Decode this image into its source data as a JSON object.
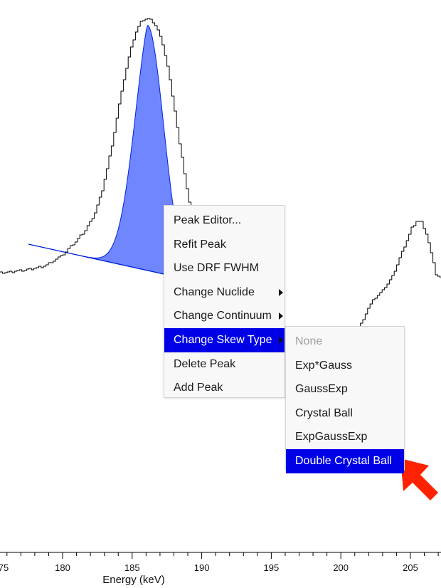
{
  "plot": {
    "x_axis": {
      "label": "Energy (keV)",
      "range": [
        175.5,
        207.2
      ],
      "major_tick_labels": [
        "75",
        "180",
        "185",
        "190",
        "195",
        "200",
        "205"
      ],
      "major_ticks": [
        180,
        185,
        190,
        195,
        200,
        205
      ],
      "minor_tick_step": 1
    },
    "colors": {
      "peak_fill": "#6f86ff",
      "peak_stroke": "#0022dd",
      "continuum_line": "#0022dd",
      "spectrum_line": "#000000",
      "menu_highlight": "#0000e6",
      "annotation_arrow": "#ff2200"
    }
  },
  "context_menu": {
    "items": [
      {
        "label": "Peak Editor...",
        "has_submenu": false,
        "active": false
      },
      {
        "label": "Refit Peak",
        "has_submenu": false,
        "active": false
      },
      {
        "label": "Use DRF FWHM",
        "has_submenu": false,
        "active": false
      },
      {
        "label": "Change Nuclide",
        "has_submenu": true,
        "active": false
      },
      {
        "label": "Change Continuum",
        "has_submenu": true,
        "active": false
      },
      {
        "label": "Change Skew Type",
        "has_submenu": true,
        "active": true
      },
      {
        "label": "Delete Peak",
        "has_submenu": false,
        "active": false
      },
      {
        "label": "Add Peak",
        "has_submenu": false,
        "active": false
      }
    ]
  },
  "skew_submenu": {
    "items": [
      {
        "label": "None",
        "disabled": true,
        "active": false
      },
      {
        "label": "Exp*Gauss",
        "disabled": false,
        "active": false
      },
      {
        "label": "GaussExp",
        "disabled": false,
        "active": false
      },
      {
        "label": "Crystal Ball",
        "disabled": false,
        "active": false
      },
      {
        "label": "ExpGaussExp",
        "disabled": false,
        "active": false
      },
      {
        "label": "Double Crystal Ball",
        "disabled": false,
        "active": true
      }
    ]
  },
  "annotation": {
    "icon": "pointer-arrow-icon"
  }
}
